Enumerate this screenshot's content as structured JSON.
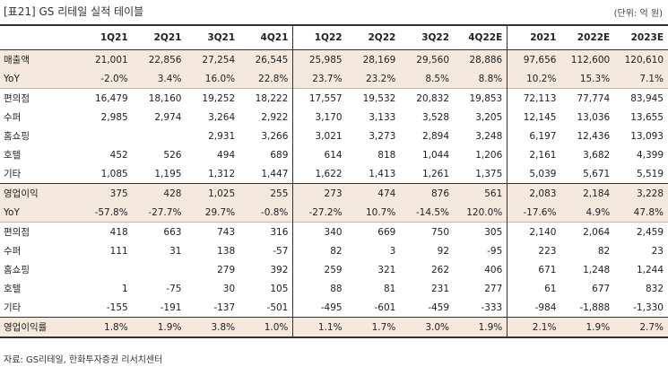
{
  "title": "[표21] GS 리테일 실적 테이블",
  "unit": "(단위: 억 원)",
  "source": "자료: GS리테일, 한화투자증권 리서치센터",
  "columns": [
    "",
    "1Q21",
    "2Q21",
    "3Q21",
    "4Q21",
    "1Q22",
    "2Q22",
    "3Q22",
    "4Q22E",
    "2021",
    "2022E",
    "2023E"
  ],
  "rows": [
    {
      "label": "매출액",
      "values": [
        "21,001",
        "22,856",
        "27,254",
        "26,545",
        "25,985",
        "28,169",
        "29,560",
        "28,886",
        "97,656",
        "112,600",
        "120,610"
      ]
    },
    {
      "label": "YoY",
      "values": [
        "-2.0%",
        "3.4%",
        "16.0%",
        "22.8%",
        "23.7%",
        "23.2%",
        "8.5%",
        "8.8%",
        "10.2%",
        "15.3%",
        "7.1%"
      ]
    },
    {
      "label": "편의점",
      "values": [
        "16,479",
        "18,160",
        "19,252",
        "18,222",
        "17,557",
        "19,532",
        "20,832",
        "19,853",
        "72,113",
        "77,774",
        "83,945"
      ]
    },
    {
      "label": "수퍼",
      "values": [
        "2,985",
        "2,974",
        "3,264",
        "2,922",
        "3,170",
        "3,133",
        "3,528",
        "3,205",
        "12,145",
        "13,036",
        "13,655"
      ]
    },
    {
      "label": "홈쇼핑",
      "values": [
        "",
        "",
        "2,931",
        "3,266",
        "3,021",
        "3,273",
        "2,894",
        "3,248",
        "6,197",
        "12,436",
        "13,093"
      ]
    },
    {
      "label": "호텔",
      "values": [
        "452",
        "526",
        "494",
        "689",
        "614",
        "818",
        "1,044",
        "1,206",
        "2,161",
        "3,682",
        "4,399"
      ]
    },
    {
      "label": "기타",
      "values": [
        "1,085",
        "1,195",
        "1,312",
        "1,447",
        "1,622",
        "1,413",
        "1,261",
        "1,375",
        "5,039",
        "5,671",
        "5,519"
      ]
    },
    {
      "label": "영업이익",
      "values": [
        "375",
        "428",
        "1,025",
        "255",
        "273",
        "474",
        "876",
        "561",
        "2,083",
        "2,184",
        "3,228"
      ]
    },
    {
      "label": "YoY",
      "values": [
        "-57.8%",
        "-27.7%",
        "29.7%",
        "-0.8%",
        "-27.2%",
        "10.7%",
        "-14.5%",
        "120.0%",
        "-17.6%",
        "4.9%",
        "47.8%"
      ]
    },
    {
      "label": "편의점",
      "values": [
        "418",
        "663",
        "743",
        "316",
        "340",
        "669",
        "750",
        "305",
        "2,140",
        "2,064",
        "2,459"
      ]
    },
    {
      "label": "수퍼",
      "values": [
        "111",
        "31",
        "138",
        "-57",
        "82",
        "3",
        "92",
        "-95",
        "223",
        "82",
        "23"
      ]
    },
    {
      "label": "홈쇼핑",
      "values": [
        "",
        "",
        "279",
        "392",
        "259",
        "321",
        "262",
        "406",
        "671",
        "1,248",
        "1,244"
      ]
    },
    {
      "label": "호텔",
      "values": [
        "1",
        "-75",
        "30",
        "105",
        "88",
        "81",
        "231",
        "277",
        "61",
        "677",
        "832"
      ]
    },
    {
      "label": "기타",
      "values": [
        "-155",
        "-191",
        "-137",
        "-501",
        "-495",
        "-601",
        "-459",
        "-333",
        "-984",
        "-1,888",
        "-1,330"
      ]
    },
    {
      "label": "영업이익률",
      "values": [
        "1.8%",
        "1.9%",
        "3.8%",
        "1.0%",
        "1.1%",
        "1.7%",
        "3.0%",
        "1.9%",
        "2.1%",
        "1.9%",
        "2.7%"
      ]
    }
  ],
  "highlight_color": "#f5e9dd"
}
